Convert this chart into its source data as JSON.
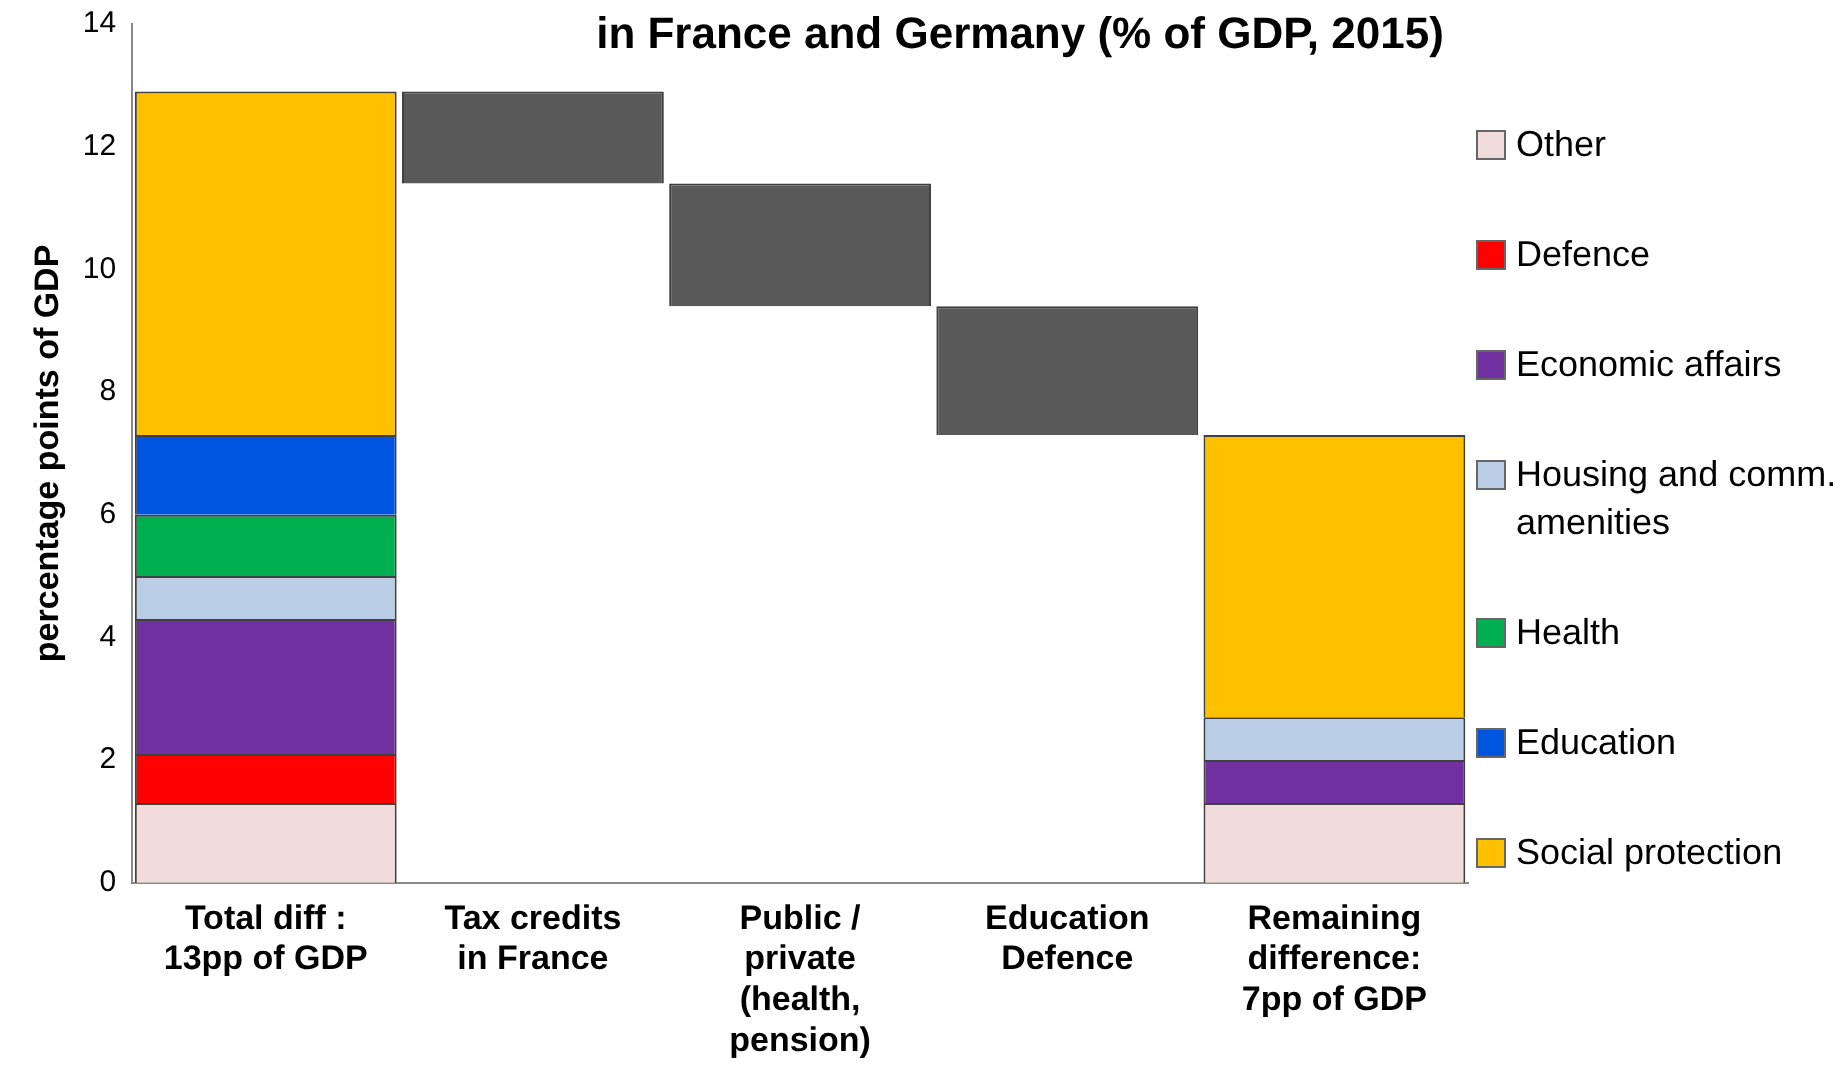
{
  "chart_data": {
    "type": "bar",
    "title": "in France and Germany  (% of GDP, 2015)",
    "ylabel": "percentage points of GDP",
    "categories": [
      "Total diff : 13pp of GDP",
      "Tax credits in France",
      "Public / private (health, pension)",
      "Education Defence",
      "Remaining difference: 7pp of GDP"
    ],
    "stacked": true,
    "ylim": [
      0,
      14
    ],
    "yticks": [
      0,
      2,
      4,
      6,
      8,
      10,
      12,
      14
    ],
    "grid": false,
    "legend": "right",
    "series": [
      {
        "name": "Other",
        "color": "#f2dcdb",
        "values": [
          1.3,
          null,
          null,
          null,
          1.3
        ]
      },
      {
        "name": "Defence",
        "color": "#ff0000",
        "values": [
          0.8,
          null,
          null,
          null,
          null
        ]
      },
      {
        "name": "Economic affairs",
        "color": "#7030a0",
        "values": [
          2.2,
          null,
          null,
          null,
          0.7
        ]
      },
      {
        "name": "Housing and comm. amenities",
        "color": "#b9cde5",
        "values": [
          0.7,
          null,
          null,
          null,
          0.7
        ]
      },
      {
        "name": "Health",
        "color": "#00b050",
        "values": [
          1.0,
          null,
          null,
          null,
          null
        ]
      },
      {
        "name": "Education",
        "color": "#0055e0",
        "values": [
          1.3,
          null,
          null,
          null,
          null
        ]
      },
      {
        "name": "Social protection",
        "color": "#ffc000",
        "values": [
          5.6,
          null,
          null,
          null,
          4.6
        ]
      },
      {
        "color": "#595959",
        "values": [
          null,
          1.5,
          2.0,
          2.1,
          null
        ],
        "base": [
          null,
          11.4,
          9.4,
          7.3,
          null
        ]
      }
    ]
  }
}
